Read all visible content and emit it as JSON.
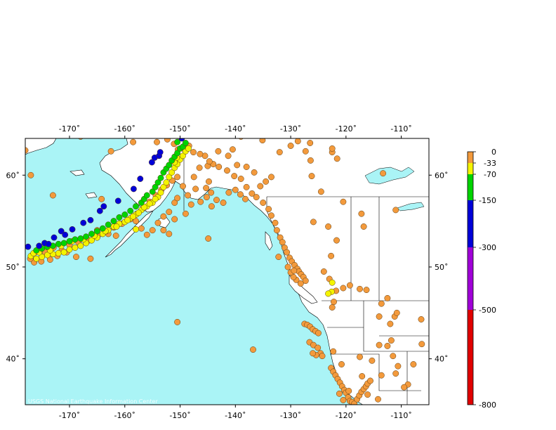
{
  "map": {
    "credit": "USGS National Earthquake Information Center",
    "ocean_color": "#aaf4f6",
    "land_color": "#ffffff",
    "lon_range": [
      -178,
      -105
    ],
    "lat_range": [
      35,
      64
    ],
    "lon_ticks": [
      "-170˚",
      "-160˚",
      "-150˚",
      "-140˚",
      "-130˚",
      "-120˚",
      "-110˚"
    ],
    "lat_ticks": [
      "60˚",
      "50˚",
      "40˚"
    ]
  },
  "legend": {
    "labels": [
      "0",
      "-33",
      "-70",
      "-150",
      "-300",
      "-500",
      "-800"
    ],
    "bands": [
      {
        "name": "0 to -33",
        "color": "#f39a3c"
      },
      {
        "name": "-33 to -70",
        "color": "#f4f400"
      },
      {
        "name": "-70 to -150",
        "color": "#00d400"
      },
      {
        "name": "-150 to -300",
        "color": "#0000d8"
      },
      {
        "name": "-300 to -500",
        "color": "#a000d8"
      },
      {
        "name": "-500 to -800",
        "color": "#e00000"
      }
    ]
  },
  "earthquakes": {
    "shallow": [
      [
        -178,
        62.7
      ],
      [
        -177,
        60
      ],
      [
        -173,
        57.8
      ],
      [
        -168,
        64.2
      ],
      [
        -165,
        54
      ],
      [
        -163,
        53.6
      ],
      [
        -158,
        55
      ],
      [
        -157,
        54.2
      ],
      [
        -156,
        53.5
      ],
      [
        -155,
        54
      ],
      [
        -154,
        54.8
      ],
      [
        -153,
        55.5
      ],
      [
        -152,
        56
      ],
      [
        -151,
        57
      ],
      [
        -150.5,
        57.5
      ],
      [
        -153,
        54
      ],
      [
        -152,
        53.6
      ],
      [
        -151,
        55.2
      ],
      [
        -149,
        55.8
      ],
      [
        -148,
        56.8
      ],
      [
        -147.5,
        59.8
      ],
      [
        -146.5,
        60.8
      ],
      [
        -145,
        61
      ],
      [
        -144,
        61.2
      ],
      [
        -143,
        60.9
      ],
      [
        -141.5,
        60.5
      ],
      [
        -140.2,
        59.9
      ],
      [
        -139,
        59.6
      ],
      [
        -138,
        58.7
      ],
      [
        -137,
        58
      ],
      [
        -136.2,
        57.6
      ],
      [
        -135,
        57
      ],
      [
        -134,
        56.3
      ],
      [
        -133.5,
        55.6
      ],
      [
        -132.8,
        54.8
      ],
      [
        -132.5,
        54
      ],
      [
        -131.9,
        53.2
      ],
      [
        -131.5,
        52.7
      ],
      [
        -131.1,
        52.1
      ],
      [
        -130.7,
        51.6
      ],
      [
        -130.2,
        51
      ],
      [
        -129.8,
        50.6
      ],
      [
        -129.3,
        50.2
      ],
      [
        -128.8,
        49.8
      ],
      [
        -128.5,
        49.5
      ],
      [
        -128.1,
        49.2
      ],
      [
        -127.7,
        48.9
      ],
      [
        -127.3,
        48.5
      ],
      [
        -128.2,
        48.2
      ],
      [
        -129,
        48.6
      ],
      [
        -129.5,
        48.9
      ],
      [
        -130,
        49.4
      ],
      [
        -129.4,
        49.6
      ],
      [
        -130.5,
        50
      ],
      [
        -127.5,
        43.8
      ],
      [
        -127,
        43.7
      ],
      [
        -126.5,
        43.5
      ],
      [
        -126,
        43.2
      ],
      [
        -125.5,
        43
      ],
      [
        -125,
        42.8
      ],
      [
        -126.6,
        41.8
      ],
      [
        -125.9,
        41.5
      ],
      [
        -125.1,
        41.2
      ],
      [
        -124.6,
        40.6
      ],
      [
        -124.3,
        40.3
      ],
      [
        -125.4,
        40.4
      ],
      [
        -126,
        40.6
      ],
      [
        -122.7,
        39
      ],
      [
        -122.3,
        38.6
      ],
      [
        -121.9,
        38.2
      ],
      [
        -121.5,
        37.8
      ],
      [
        -121.1,
        37.4
      ],
      [
        -120.7,
        37
      ],
      [
        -120.3,
        36.6
      ],
      [
        -120,
        36.3
      ],
      [
        -119.6,
        35.8
      ],
      [
        -119.3,
        35.4
      ],
      [
        -118.9,
        35.3
      ],
      [
        -118.5,
        35.1
      ],
      [
        -118,
        35.6
      ],
      [
        -117.6,
        36
      ],
      [
        -117.2,
        36.4
      ],
      [
        -116.8,
        36.7
      ],
      [
        -116.4,
        37
      ],
      [
        -116.1,
        37.3
      ],
      [
        -119.5,
        36.5
      ],
      [
        -120.5,
        35.5
      ],
      [
        -121.2,
        36.2
      ],
      [
        -117.5,
        40.2
      ],
      [
        -115.3,
        39.8
      ],
      [
        -114,
        41.5
      ],
      [
        -112.5,
        41.4
      ],
      [
        -111.8,
        42
      ],
      [
        -112,
        43.8
      ],
      [
        -111.2,
        44.6
      ],
      [
        -110.8,
        45
      ],
      [
        -114,
        44.6
      ],
      [
        -113.6,
        46
      ],
      [
        -112.5,
        46.6
      ],
      [
        -116.3,
        47.5
      ],
      [
        -117.5,
        47.6
      ],
      [
        -119.3,
        48
      ],
      [
        -120.5,
        47.7
      ],
      [
        -121.8,
        47.4
      ],
      [
        -122.2,
        46.2
      ],
      [
        -122.5,
        45.6
      ],
      [
        -106.4,
        44.3
      ],
      [
        -106.3,
        41.6
      ],
      [
        -107.8,
        39.4
      ],
      [
        -108.8,
        37.2
      ],
      [
        -109.5,
        36.9
      ],
      [
        -111,
        38.4
      ],
      [
        -110.6,
        39.2
      ],
      [
        -111.5,
        40.3
      ],
      [
        -113.6,
        38.2
      ],
      [
        -115.6,
        37.6
      ],
      [
        -117.1,
        38.1
      ],
      [
        -114.2,
        35.6
      ],
      [
        -116.1,
        36.1
      ],
      [
        -120.8,
        39.4
      ],
      [
        -122.3,
        40.8
      ],
      [
        -123,
        48.7
      ],
      [
        -124,
        49.5
      ],
      [
        -122.7,
        51.2
      ],
      [
        -121.7,
        52.9
      ],
      [
        -123.2,
        54.4
      ],
      [
        -124.5,
        58.2
      ],
      [
        -126.2,
        59.9
      ],
      [
        -122.5,
        62.5
      ],
      [
        -122.5,
        62.9
      ],
      [
        -121.6,
        61.8
      ],
      [
        -127.3,
        62.6
      ],
      [
        -126.5,
        63.5
      ],
      [
        -126.4,
        61.6
      ],
      [
        -128.7,
        63.7
      ],
      [
        -130,
        63.2
      ],
      [
        -133.2,
        64.3
      ],
      [
        -135.1,
        63.8
      ],
      [
        -137,
        64.4
      ],
      [
        -139,
        64.2
      ],
      [
        -140.5,
        62.8
      ],
      [
        -141.3,
        62.1
      ],
      [
        -143.1,
        62.6
      ],
      [
        -144.7,
        61.5
      ],
      [
        -145.5,
        62.1
      ],
      [
        -146.4,
        62.3
      ],
      [
        -147.6,
        62.5
      ],
      [
        -148.4,
        63.2
      ],
      [
        -149.5,
        62.9
      ],
      [
        -150.4,
        62.8
      ],
      [
        -151.1,
        63.4
      ],
      [
        -152.3,
        63.9
      ],
      [
        -154.2,
        63.6
      ],
      [
        -158.5,
        63.6
      ],
      [
        -162.5,
        62.6
      ],
      [
        -160.3,
        64.4
      ],
      [
        -164.2,
        57.4
      ],
      [
        -161.6,
        53.4
      ],
      [
        -166.2,
        50.9
      ],
      [
        -168.8,
        51.1
      ],
      [
        -170.5,
        51.6
      ],
      [
        -172.2,
        51.2
      ],
      [
        -173.5,
        50.8
      ],
      [
        -175.1,
        50.6
      ],
      [
        -176.4,
        50.5
      ],
      [
        -177.1,
        50.9
      ],
      [
        -176.2,
        51.6
      ],
      [
        -174.4,
        51.6
      ],
      [
        -172.9,
        52.1
      ],
      [
        -171.4,
        51.8
      ],
      [
        -170,
        52.4
      ],
      [
        -168.4,
        52.7
      ],
      [
        -166.5,
        52.9
      ],
      [
        -164.9,
        53.4
      ],
      [
        -163.4,
        53.9
      ],
      [
        -162,
        54.3
      ],
      [
        -160.5,
        54.7
      ],
      [
        -159,
        55.2
      ],
      [
        -157.8,
        55.8
      ],
      [
        -156.6,
        56.4
      ],
      [
        -155.5,
        57.1
      ],
      [
        -154.4,
        57.8
      ],
      [
        -153.4,
        58.4
      ],
      [
        -152.4,
        58.9
      ],
      [
        -151.4,
        59.4
      ],
      [
        -150.5,
        59.8
      ],
      [
        -149.5,
        58.8
      ],
      [
        -148.6,
        57.8
      ],
      [
        -147.2,
        58.5
      ],
      [
        -146.3,
        57.1
      ],
      [
        -145.2,
        57.6
      ],
      [
        -144.4,
        58.1
      ],
      [
        -145.3,
        58.6
      ],
      [
        -144.8,
        59.3
      ],
      [
        -144.3,
        56.6
      ],
      [
        -143.4,
        57.3
      ],
      [
        -142.2,
        57
      ],
      [
        -141.2,
        58.1
      ],
      [
        -140,
        58.4
      ],
      [
        -139.1,
        57.9
      ],
      [
        -138.2,
        57.4
      ],
      [
        -139.7,
        61.1
      ],
      [
        -138,
        60.9
      ],
      [
        -136.6,
        60.3
      ],
      [
        -135.5,
        58.8
      ],
      [
        -134.5,
        59.3
      ],
      [
        -133.5,
        59.8
      ],
      [
        -132,
        62.5
      ],
      [
        -150.5,
        44
      ],
      [
        -144.9,
        53.1
      ],
      [
        -136.8,
        41
      ],
      [
        -132.2,
        51.1
      ],
      [
        -125.9,
        54.9
      ],
      [
        -120.5,
        57.1
      ],
      [
        -117.2,
        55.8
      ],
      [
        -116.8,
        54.4
      ],
      [
        -111,
        56.2
      ],
      [
        -113.3,
        60.2
      ]
    ],
    "intermediate": [
      [
        -177,
        51.2
      ],
      [
        -176,
        50.9
      ],
      [
        -175,
        51.1
      ],
      [
        -174,
        51.3
      ],
      [
        -173,
        51.4
      ],
      [
        -172,
        51.5
      ],
      [
        -171,
        51.6
      ],
      [
        -170,
        51.9
      ],
      [
        -169,
        52.1
      ],
      [
        -168,
        52.3
      ],
      [
        -167,
        52.6
      ],
      [
        -166,
        52.9
      ],
      [
        -165,
        53.2
      ],
      [
        -164,
        53.6
      ],
      [
        -163,
        54
      ],
      [
        -162,
        54.4
      ],
      [
        -161,
        54.7
      ],
      [
        -160,
        54.9
      ],
      [
        -159,
        55.3
      ],
      [
        -158,
        55.7
      ],
      [
        -157,
        56.2
      ],
      [
        -156,
        56.6
      ],
      [
        -155,
        57
      ],
      [
        -154,
        57.6
      ],
      [
        -153.5,
        58.1
      ],
      [
        -153,
        58.7
      ],
      [
        -152.5,
        59.2
      ],
      [
        -152,
        59.8
      ],
      [
        -151.5,
        60.3
      ],
      [
        -151,
        60.8
      ],
      [
        -150.5,
        61.2
      ],
      [
        -150,
        61.7
      ],
      [
        -149.5,
        62.1
      ],
      [
        -149,
        62.6
      ],
      [
        -148.5,
        62.9
      ],
      [
        -151,
        61.4
      ],
      [
        -150.6,
        61.9
      ],
      [
        -176.5,
        51.5
      ],
      [
        -175.5,
        51.6
      ],
      [
        -173.5,
        51.8
      ],
      [
        -171.5,
        52.3
      ],
      [
        -169.5,
        52.8
      ],
      [
        -167.5,
        53
      ],
      [
        -165.5,
        53.4
      ],
      [
        -163.5,
        53.9
      ],
      [
        -161.5,
        54.4
      ],
      [
        -159.5,
        55.1
      ],
      [
        -158.5,
        55.5
      ],
      [
        -157.5,
        55.9
      ],
      [
        -156.5,
        56.5
      ],
      [
        -155.5,
        56.9
      ],
      [
        -154.5,
        57.4
      ],
      [
        -158,
        54.1
      ],
      [
        -122.5,
        48.3
      ],
      [
        -122.6,
        47.3
      ],
      [
        -123.2,
        47.1
      ]
    ],
    "deep": [
      [
        -176,
        51.8
      ],
      [
        -175,
        52
      ],
      [
        -174,
        52.2
      ],
      [
        -173,
        52.3
      ],
      [
        -172,
        52.5
      ],
      [
        -171,
        52.6
      ],
      [
        -170,
        52.8
      ],
      [
        -169,
        53
      ],
      [
        -168,
        53.1
      ],
      [
        -167,
        53.3
      ],
      [
        -166,
        53.6
      ],
      [
        -165,
        53.9
      ],
      [
        -164,
        54.2
      ],
      [
        -163,
        54.6
      ],
      [
        -162,
        55
      ],
      [
        -161,
        55.4
      ],
      [
        -160,
        55.7
      ],
      [
        -159,
        56.1
      ],
      [
        -158,
        56.6
      ],
      [
        -157,
        57
      ],
      [
        -156.5,
        57.4
      ],
      [
        -156,
        57.8
      ],
      [
        -155,
        58.2
      ],
      [
        -154.5,
        58.7
      ],
      [
        -154,
        59.2
      ],
      [
        -153.5,
        59.7
      ],
      [
        -153,
        60.3
      ],
      [
        -152.5,
        60.7
      ],
      [
        -152,
        61.1
      ],
      [
        -151.5,
        61.6
      ],
      [
        -151,
        62
      ],
      [
        -150.5,
        62.4
      ],
      [
        -150,
        62.9
      ],
      [
        -149.5,
        63.1
      ],
      [
        -149,
        63.5
      ],
      [
        -150.5,
        63.6
      ]
    ],
    "very_deep": [
      [
        -177.5,
        52.2
      ],
      [
        -175.5,
        52.3
      ],
      [
        -174.5,
        52.6
      ],
      [
        -173.8,
        52.5
      ],
      [
        -172.8,
        53.2
      ],
      [
        -171.5,
        53.9
      ],
      [
        -170.8,
        53.5
      ],
      [
        -169.5,
        54.1
      ],
      [
        -167.5,
        54.8
      ],
      [
        -166.2,
        55.1
      ],
      [
        -164.5,
        56.1
      ],
      [
        -163.8,
        56.6
      ],
      [
        -161.2,
        57.2
      ],
      [
        -158.4,
        58.5
      ],
      [
        -157.2,
        59.6
      ],
      [
        -155.1,
        61.4
      ],
      [
        -154.6,
        61.9
      ],
      [
        -153.8,
        62.1
      ],
      [
        -153.6,
        62.5
      ],
      [
        -149.7,
        64
      ]
    ]
  }
}
